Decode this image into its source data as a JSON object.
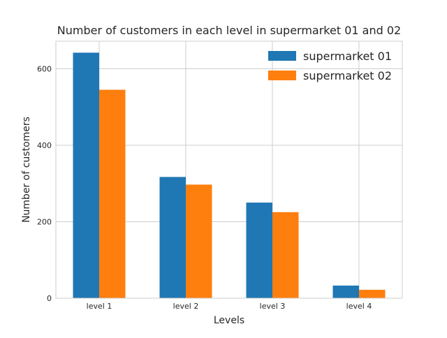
{
  "chart_data": {
    "type": "bar",
    "title": "Number of customers in each level in supermarket 01 and 02",
    "xlabel": "Levels",
    "ylabel": "Number of customers",
    "categories": [
      "level 1",
      "level 2",
      "level 3",
      "level 4"
    ],
    "series": [
      {
        "name": "supermarket 01",
        "color": "#1f77b4",
        "values": [
          642,
          317,
          250,
          33
        ]
      },
      {
        "name": "supermarket 02",
        "color": "#ff7f0e",
        "values": [
          545,
          297,
          225,
          22
        ]
      }
    ],
    "ylim": [
      0,
      672
    ],
    "yticks": [
      0,
      200,
      400,
      600
    ],
    "grid": true,
    "legend_position": "top-right"
  }
}
